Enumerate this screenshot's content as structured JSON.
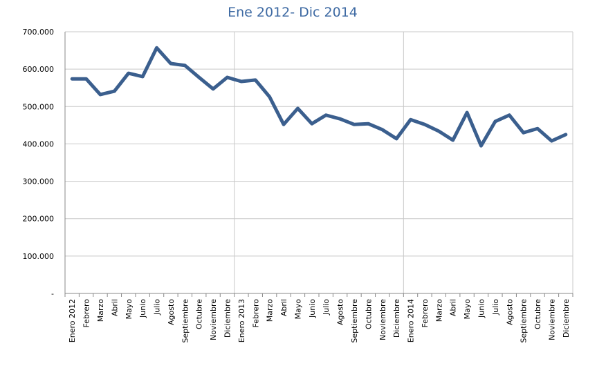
{
  "chart_data": {
    "type": "line",
    "subtitle": "Ene 2012- Dic 2014",
    "categories": [
      "Enero 2012",
      "Febrero",
      "Marzo",
      "Abril",
      "Mayo",
      "Junio",
      "Julio",
      "Agosto",
      "Septiembre",
      "Octubre",
      "Noviembre",
      "Diciembre",
      "Enero 2013",
      "Febrero",
      "Marzo",
      "Abril",
      "Mayo",
      "Junio",
      "Julio",
      "Agosto",
      "Septiembre",
      "Octubre",
      "Noviembre",
      "Diciembre",
      "Enero 2014",
      "Febrero",
      "Marzo",
      "Abril",
      "Mayo",
      "Junio",
      "Julio",
      "Agosto",
      "Septiembre",
      "Octubre",
      "Noviembre",
      "Diciembre"
    ],
    "values": [
      574000,
      574000,
      532000,
      541000,
      589000,
      580000,
      657000,
      615000,
      610000,
      578000,
      547000,
      578000,
      567000,
      571000,
      526000,
      452000,
      495000,
      454000,
      477000,
      467000,
      452000,
      454000,
      438000,
      414000,
      465000,
      452000,
      434000,
      410000,
      484000,
      395000,
      460000,
      477000,
      430000,
      441000,
      408000,
      425000
    ],
    "color": "#3b5f8e",
    "ylim": [
      0,
      700000
    ],
    "yticks": [
      {
        "value": 0,
        "label": "-"
      },
      {
        "value": 100000,
        "label": "100.000"
      },
      {
        "value": 200000,
        "label": "200.000"
      },
      {
        "value": 300000,
        "label": "300.000"
      },
      {
        "value": 400000,
        "label": "400.000"
      },
      {
        "value": 500000,
        "label": "500.000"
      },
      {
        "value": 600000,
        "label": "600.000"
      },
      {
        "value": 700000,
        "label": "700.000"
      }
    ],
    "grid": true
  }
}
